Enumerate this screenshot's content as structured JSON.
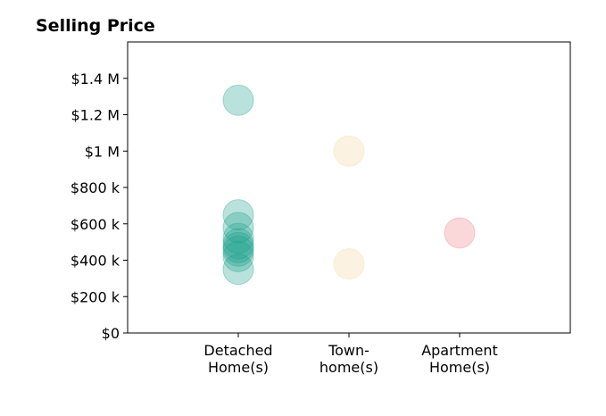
{
  "chart_data": {
    "type": "scatter",
    "title": "Selling Price",
    "xlabel": "",
    "ylabel": "",
    "categories": [
      "Detached\nHome(s)",
      "Town-\nhome(s)",
      "Apartment\nHome(s)"
    ],
    "y_tick_values": [
      0,
      200000,
      400000,
      600000,
      800000,
      1000000,
      1200000,
      1400000
    ],
    "y_tick_labels": [
      "$0",
      "$200 k",
      "$400 k",
      "$600 k",
      "$800 k",
      "$1 M",
      "$1.2 M",
      "$1.4 M"
    ],
    "ylim": [
      0,
      1600000
    ],
    "grid": false,
    "legend": "none",
    "series": [
      {
        "category": "Detached\nHome(s)",
        "color": "#1a9e8a",
        "values": [
          1280000,
          650000,
          580000,
          520000,
          490000,
          470000,
          450000,
          420000,
          350000
        ]
      },
      {
        "category": "Town-\nhome(s)",
        "color": "#f2d49b",
        "values": [
          1000000,
          380000
        ]
      },
      {
        "category": "Apartment\nHome(s)",
        "color": "#ef7d86",
        "values": [
          550000
        ]
      }
    ]
  }
}
